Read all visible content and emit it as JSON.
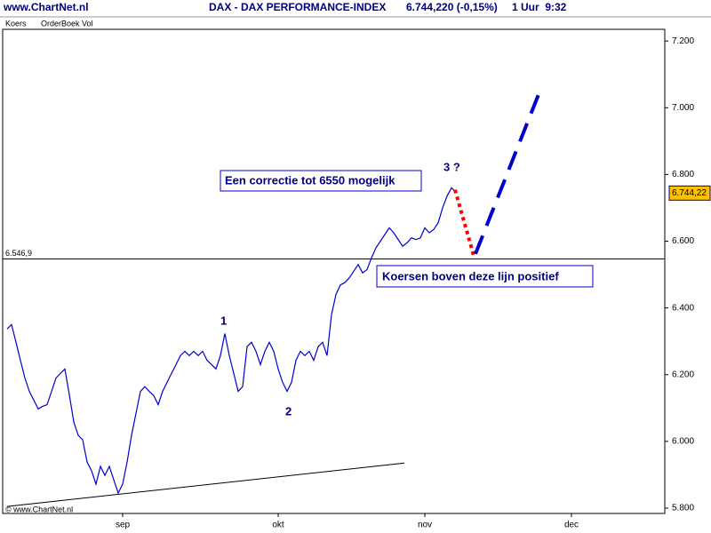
{
  "chart_data": {
    "type": "line",
    "site": "www.ChartNet.nl",
    "title": "DAX - DAX PERFORMANCE-INDEX",
    "quote": "6.744,220 (-0,15%)",
    "interval": "1 Uur  9:32",
    "tabs": [
      "Koers",
      "OrderBoek Vol"
    ],
    "copyright": "© www.ChartNet.nl",
    "color": "#0000cc",
    "values": [
      6337,
      6350,
      6297,
      6243,
      6190,
      6150,
      6124,
      6097,
      6105,
      6110,
      6150,
      6190,
      6204,
      6217,
      6140,
      6058,
      6018,
      6005,
      5938,
      5912,
      5872,
      5925,
      5898,
      5925,
      5885,
      5845,
      5872,
      5938,
      6018,
      6084,
      6150,
      6164,
      6150,
      6137,
      6110,
      6150,
      6177,
      6204,
      6230,
      6257,
      6270,
      6257,
      6270,
      6257,
      6270,
      6243,
      6230,
      6217,
      6257,
      6323,
      6257,
      6204,
      6150,
      6164,
      6284,
      6297,
      6270,
      6230,
      6270,
      6297,
      6270,
      6217,
      6177,
      6150,
      6177,
      6243,
      6270,
      6257,
      6270,
      6243,
      6284,
      6297,
      6257,
      6380,
      6440,
      6469,
      6476,
      6490,
      6510,
      6530,
      6505,
      6515,
      6550,
      6580,
      6600,
      6620,
      6640,
      6625,
      6605,
      6585,
      6595,
      6610,
      6605,
      6610,
      6640,
      6625,
      6635,
      6655,
      6700,
      6735,
      6760,
      6748
    ],
    "xlim": [
      -1,
      148
    ],
    "ylim": [
      5784,
      7235
    ],
    "xticks": [
      {
        "value": 26,
        "label": "sep"
      },
      {
        "value": 61,
        "label": "okt"
      },
      {
        "value": 94,
        "label": "nov"
      },
      {
        "value": 127,
        "label": "dec"
      }
    ],
    "yticks": [
      {
        "value": 5800,
        "label": "5.800"
      },
      {
        "value": 6000,
        "label": "6.000"
      },
      {
        "value": 6200,
        "label": "6.200"
      },
      {
        "value": 6400,
        "label": "6.400"
      },
      {
        "value": 6600,
        "label": "6.600"
      },
      {
        "value": 6800,
        "label": "6.800"
      },
      {
        "value": 7000,
        "label": "7.000"
      },
      {
        "value": 7200,
        "label": "7.200"
      }
    ],
    "level": {
      "value": 6546.9,
      "label": "6.546,9"
    },
    "last_price": {
      "value": 6744.22,
      "label": "6.744,22"
    },
    "support_line": {
      "x": [
        0,
        89.4
      ],
      "values": [
        5805,
        5935
      ],
      "color": "#000000"
    },
    "correction": {
      "x": [
        100.8,
        105
      ],
      "values": [
        6754,
        6557
      ],
      "color": "#ff0000"
    },
    "target": {
      "x": [
        105.4,
        120.4
      ],
      "values": [
        6562,
        7067
      ],
      "color": "#0000cc"
    },
    "annotations": [
      "Een correctie tot 6550 mogelijk",
      "Koersen boven deze lijn positief"
    ],
    "wave_labels": [
      "1",
      "2",
      "3 ?"
    ]
  }
}
